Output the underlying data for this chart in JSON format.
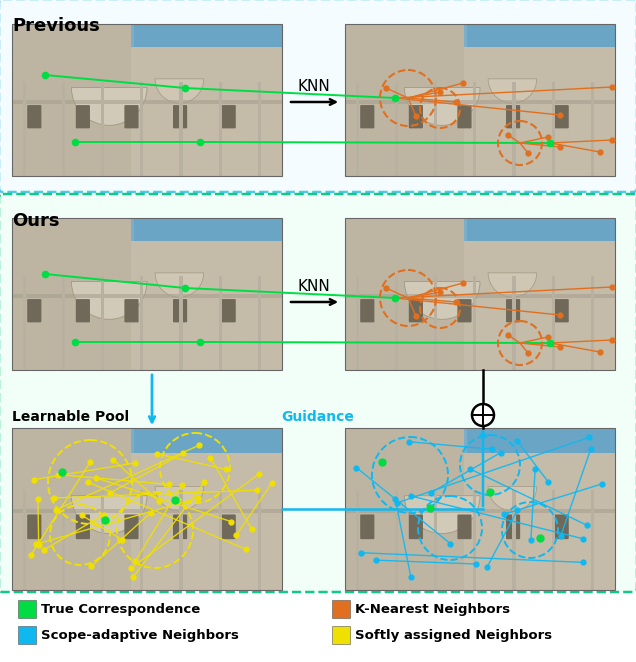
{
  "fig_width": 6.36,
  "fig_height": 6.62,
  "bg_color": "#ffffff",
  "title_previous": "Previous",
  "title_ours": "Ours",
  "title_learnable": "Learnable Pool",
  "title_guidance": "Guidance",
  "label_knn": "KNN",
  "color_true_corr": "#00dd44",
  "color_knn": "#e07020",
  "color_scope": "#10b8f0",
  "color_softly": "#f0e000",
  "border_previous": "#50c8e8",
  "border_ours": "#10c888",
  "legend_items": [
    {
      "label": "True Correspondence",
      "color": "#00dd44"
    },
    {
      "label": "Scope-adaptive Neighbors",
      "color": "#10b8f0"
    },
    {
      "label": "K-Nearest Neighbors",
      "color": "#e07020"
    },
    {
      "label": "Softly assigned Neighbors",
      "color": "#f0e000"
    }
  ]
}
